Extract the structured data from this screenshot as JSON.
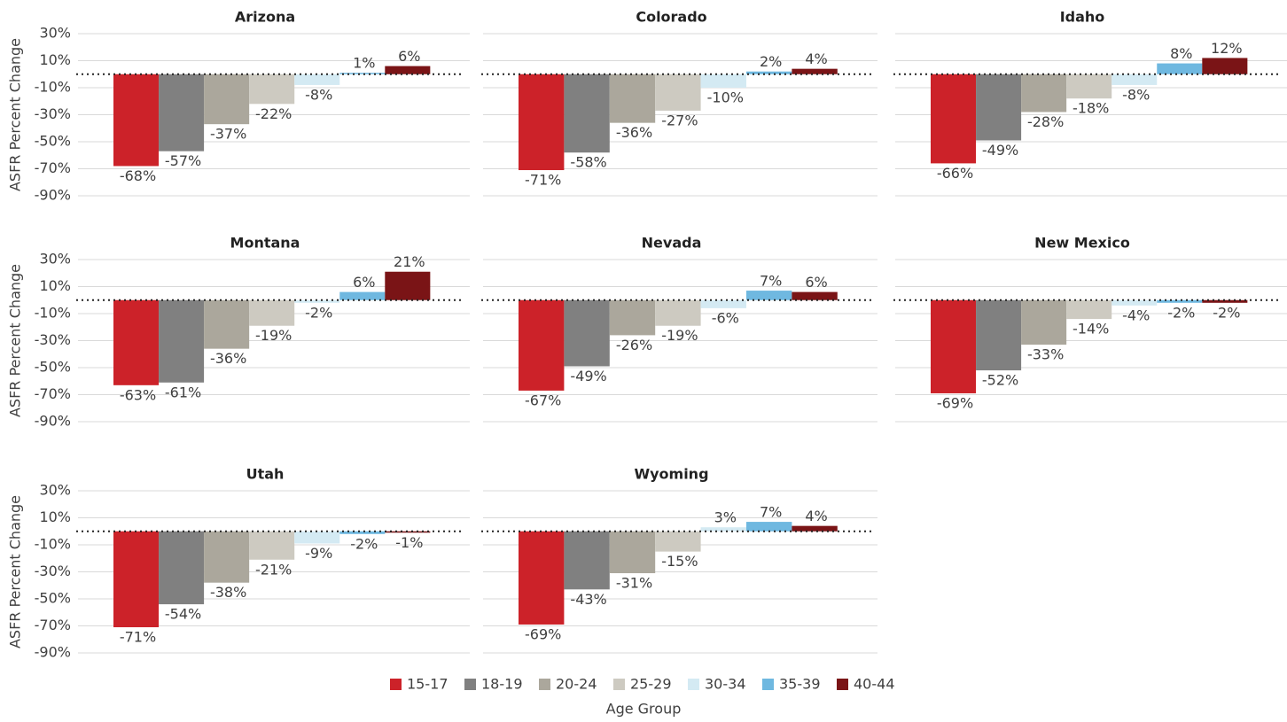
{
  "chart_data": [
    {
      "type": "bar",
      "title": "Arizona",
      "ylabel": "ASFR Percent Change",
      "values": [
        -68,
        -57,
        -37,
        -22,
        -8,
        1,
        6
      ],
      "value_labels": [
        "-68%",
        "-57%",
        "-37%",
        "-22%",
        "-8%",
        "1%",
        "6%"
      ],
      "ylim": [
        -90,
        30
      ],
      "yticks": [
        {
          "value": 30,
          "label": "30%"
        },
        {
          "value": 10,
          "label": "10%"
        },
        {
          "value": -10,
          "label": "-10%"
        },
        {
          "value": -30,
          "label": "-30%"
        },
        {
          "value": -50,
          "label": "-50%"
        },
        {
          "value": -70,
          "label": "-70%"
        },
        {
          "value": -90,
          "label": "-90%"
        }
      ],
      "grid": true
    },
    {
      "type": "bar",
      "title": "Colorado",
      "values": [
        -71,
        -58,
        -36,
        -27,
        -10,
        2,
        4
      ],
      "value_labels": [
        "-71%",
        "-58%",
        "-36%",
        "-27%",
        "-10%",
        "2%",
        "4%"
      ],
      "ylim": [
        -90,
        30
      ],
      "yticks": [
        30,
        10,
        -10,
        -30,
        -50,
        -70,
        -90
      ],
      "grid": true
    },
    {
      "type": "bar",
      "title": "Idaho",
      "values": [
        -66,
        -49,
        -28,
        -18,
        -8,
        8,
        12
      ],
      "value_labels": [
        "-66%",
        "-49%",
        "-28%",
        "-18%",
        "-8%",
        "8%",
        "12%"
      ],
      "ylim": [
        -90,
        30
      ],
      "yticks": [
        30,
        10,
        -10,
        -30,
        -50,
        -70,
        -90
      ],
      "grid": true
    },
    {
      "type": "bar",
      "title": "Montana",
      "ylabel": "ASFR Percent Change",
      "values": [
        -63,
        -61,
        -36,
        -19,
        -2,
        6,
        21
      ],
      "value_labels": [
        "-63%",
        "-61%",
        "-36%",
        "-19%",
        "-2%",
        "6%",
        "21%"
      ],
      "ylim": [
        -90,
        30
      ],
      "yticks": [
        {
          "value": 30,
          "label": "30%"
        },
        {
          "value": 10,
          "label": "10%"
        },
        {
          "value": -10,
          "label": "-10%"
        },
        {
          "value": -30,
          "label": "-30%"
        },
        {
          "value": -50,
          "label": "-50%"
        },
        {
          "value": -70,
          "label": "-70%"
        },
        {
          "value": -90,
          "label": "-90%"
        }
      ],
      "grid": true
    },
    {
      "type": "bar",
      "title": "Nevada",
      "values": [
        -67,
        -49,
        -26,
        -19,
        -6,
        7,
        6
      ],
      "value_labels": [
        "-67%",
        "-49%",
        "-26%",
        "-19%",
        "-6%",
        "7%",
        "6%"
      ],
      "ylim": [
        -90,
        30
      ],
      "yticks": [
        30,
        10,
        -10,
        -30,
        -50,
        -70,
        -90
      ],
      "grid": true
    },
    {
      "type": "bar",
      "title": "New Mexico",
      "values": [
        -69,
        -52,
        -33,
        -14,
        -4,
        -2,
        -2
      ],
      "value_labels": [
        "-69%",
        "-52%",
        "-33%",
        "-14%",
        "-4%",
        "-2%",
        "-2%"
      ],
      "ylim": [
        -90,
        30
      ],
      "yticks": [
        30,
        10,
        -10,
        -30,
        -50,
        -70,
        -90
      ],
      "grid": true
    },
    {
      "type": "bar",
      "title": "Utah",
      "ylabel": "ASFR Percent Change",
      "values": [
        -71,
        -54,
        -38,
        -21,
        -9,
        -2,
        -1
      ],
      "value_labels": [
        "-71%",
        "-54%",
        "-38%",
        "-21%",
        "-9%",
        "-2%",
        "-1%"
      ],
      "ylim": [
        -90,
        30
      ],
      "yticks": [
        {
          "value": 30,
          "label": "30%"
        },
        {
          "value": 10,
          "label": "10%"
        },
        {
          "value": -10,
          "label": "-10%"
        },
        {
          "value": -30,
          "label": "-30%"
        },
        {
          "value": -50,
          "label": "-50%"
        },
        {
          "value": -70,
          "label": "-70%"
        },
        {
          "value": -90,
          "label": "-90%"
        }
      ],
      "grid": true
    },
    {
      "type": "bar",
      "title": "Wyoming",
      "values": [
        -69,
        -43,
        -31,
        -15,
        3,
        7,
        4
      ],
      "value_labels": [
        "-69%",
        "-43%",
        "-31%",
        "-15%",
        "3%",
        "7%",
        "4%"
      ],
      "ylim": [
        -90,
        30
      ],
      "yticks": [
        30,
        10,
        -10,
        -30,
        -50,
        -70,
        -90
      ],
      "grid": true
    }
  ],
  "legend": {
    "title": "Age Group",
    "items": [
      {
        "name": "15-17",
        "color": "#cc2229"
      },
      {
        "name": "18-19",
        "color": "#808080"
      },
      {
        "name": "20-24",
        "color": "#aba79c"
      },
      {
        "name": "25-29",
        "color": "#cdcac1"
      },
      {
        "name": "30-34",
        "color": "#d4eaf3"
      },
      {
        "name": "35-39",
        "color": "#6fb8e0"
      },
      {
        "name": "40-44",
        "color": "#7a1416"
      }
    ]
  }
}
